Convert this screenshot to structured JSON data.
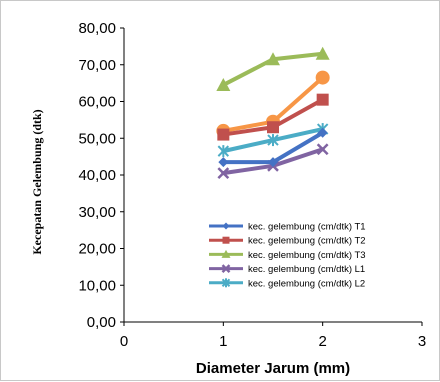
{
  "chart_data": {
    "type": "line",
    "title": "",
    "xlabel": "Diameter Jarum (mm)",
    "ylabel": "Kecepatan Gelembung (dtk)",
    "xlim": [
      0,
      3
    ],
    "ylim": [
      0,
      80
    ],
    "x_ticks": [
      "0",
      "1",
      "2",
      "3"
    ],
    "y_ticks": [
      "0,00",
      "10,00",
      "20,00",
      "30,00",
      "40,00",
      "50,00",
      "60,00",
      "70,00",
      "80,00"
    ],
    "grid": false,
    "legend_position": "lower-right",
    "x": [
      1,
      1.5,
      2
    ],
    "series": [
      {
        "name": "kec. gelembung (cm/dtk) T1",
        "color": "#4472C4",
        "marker": "diamond",
        "values": [
          43.5,
          43.5,
          51.5
        ]
      },
      {
        "name": "kec. gelembung (cm/dtk) T2",
        "color": "#C0504D",
        "marker": "square",
        "values": [
          51.0,
          53.0,
          60.5
        ]
      },
      {
        "name": "kec. gelembung (cm/dtk) T3",
        "color": "#9BBB59",
        "marker": "triangle",
        "values": [
          64.5,
          71.5,
          73.0
        ]
      },
      {
        "name": "kec. gelembung (cm/dtk) L1",
        "color": "#8064A2",
        "marker": "x",
        "values": [
          40.5,
          42.5,
          47.0
        ]
      },
      {
        "name": "kec. gelembung (cm/dtk) L2",
        "color": "#4BACC6",
        "marker": "star",
        "values": [
          46.5,
          49.5,
          52.5
        ]
      },
      {
        "name": "",
        "color": "#F79646",
        "marker": "circle",
        "values": [
          52.0,
          54.5,
          66.5
        ]
      }
    ]
  }
}
